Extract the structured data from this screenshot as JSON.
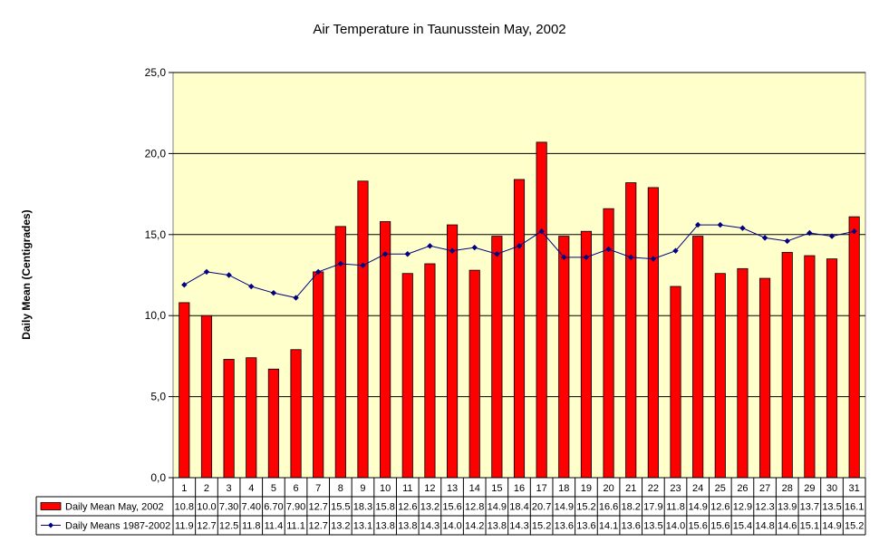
{
  "chart_data": {
    "type": "bar",
    "title": "Air Temperature in Taunusstein   May,  2002",
    "xlabel": "",
    "ylabel": "Daily Mean (Centigrades)",
    "ylim": [
      0,
      25
    ],
    "yticks": [
      "0,0",
      "5,0",
      "10,0",
      "15,0",
      "20,0",
      "25,0"
    ],
    "ytick_values": [
      0,
      5,
      10,
      15,
      20,
      25
    ],
    "grid": true,
    "legend_placement": "bottom data table",
    "plot_background": "#ffffcc",
    "categories": [
      "1",
      "2",
      "3",
      "4",
      "5",
      "6",
      "7",
      "8",
      "9",
      "10",
      "11",
      "12",
      "13",
      "14",
      "15",
      "16",
      "17",
      "18",
      "19",
      "20",
      "21",
      "22",
      "23",
      "24",
      "25",
      "26",
      "27",
      "28",
      "29",
      "30",
      "31"
    ],
    "series": [
      {
        "name": "Daily Mean May, 2002",
        "kind": "bar",
        "color": "#ff0000",
        "values": [
          10.8,
          10.0,
          7.3,
          7.4,
          6.7,
          7.9,
          12.7,
          15.5,
          18.3,
          15.8,
          12.6,
          13.2,
          15.6,
          12.8,
          14.9,
          18.4,
          20.7,
          14.9,
          15.2,
          16.6,
          18.2,
          17.9,
          11.8,
          14.9,
          12.6,
          12.9,
          12.3,
          13.9,
          13.7,
          13.5,
          16.1
        ],
        "labels": [
          "10.8",
          "10.0",
          "7.30",
          "7.40",
          "6.70",
          "7.90",
          "12.7",
          "15.5",
          "18.3",
          "15.8",
          "12.6",
          "13.2",
          "15.6",
          "12.8",
          "14.9",
          "18.4",
          "20.7",
          "14.9",
          "15.2",
          "16.6",
          "18.2",
          "17.9",
          "11.8",
          "14.9",
          "12.6",
          "12.9",
          "12.3",
          "13.9",
          "13.7",
          "13.5",
          "16.1"
        ]
      },
      {
        "name": "Daily Means 1987-2002",
        "kind": "line",
        "color": "#000080",
        "values": [
          11.9,
          12.7,
          12.5,
          11.8,
          11.4,
          11.1,
          12.7,
          13.2,
          13.1,
          13.8,
          13.8,
          14.3,
          14.0,
          14.2,
          13.8,
          14.3,
          15.2,
          13.6,
          13.6,
          14.1,
          13.6,
          13.5,
          14.0,
          15.6,
          15.6,
          15.4,
          14.8,
          14.6,
          15.1,
          14.9,
          15.2
        ],
        "labels": [
          "11.9",
          "12.7",
          "12.5",
          "11.8",
          "11.4",
          "11.1",
          "12.7",
          "13.2",
          "13.1",
          "13.8",
          "13.8",
          "14.3",
          "14.0",
          "14.2",
          "13.8",
          "14.3",
          "15.2",
          "13.6",
          "13.6",
          "14.1",
          "13.6",
          "13.5",
          "14.0",
          "15.6",
          "15.6",
          "15.4",
          "14.8",
          "14.6",
          "15.1",
          "14.9",
          "15.2"
        ]
      }
    ]
  }
}
